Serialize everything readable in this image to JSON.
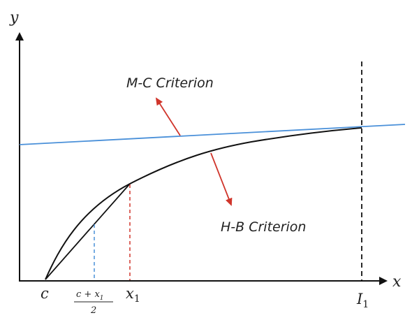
{
  "axes": {
    "x_label": "x",
    "y_label": "y"
  },
  "labels": {
    "mc_criterion": "M-C Criterion",
    "hb_criterion": "H-B Criterion",
    "c": "c",
    "x": "x",
    "x_sub": "1",
    "I": "I",
    "I_sub": "1",
    "midpoint_num_a": "c + x",
    "midpoint_num_sub": "1",
    "midpoint_den": "2"
  },
  "colors": {
    "mc_line": "#4a90d9",
    "hb_curve": "#111111",
    "arrow": "#d0352b",
    "dash_midpoint": "#4a90d9",
    "dash_x1": "#d0352b",
    "dash_I1": "#111111",
    "axis": "#111111"
  }
}
